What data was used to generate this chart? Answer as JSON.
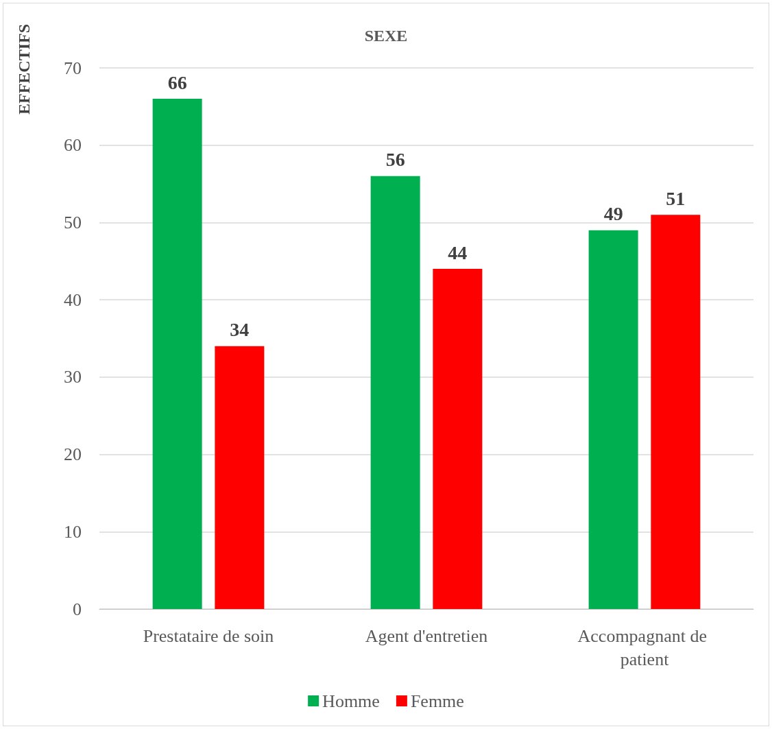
{
  "chart_data": {
    "type": "bar",
    "title": "SEXE",
    "ylabel": "EFFECTIFS",
    "categories": [
      "Prestataire de soin",
      "Agent d'entretien",
      "Accompagnant de patient"
    ],
    "series": [
      {
        "name": "Homme",
        "color": "#00b050",
        "values": [
          66,
          56,
          49
        ]
      },
      {
        "name": "Femme",
        "color": "#ff0000",
        "values": [
          34,
          44,
          51
        ]
      }
    ],
    "ylim": [
      0,
      70
    ],
    "yticks": [
      0,
      10,
      20,
      30,
      40,
      50,
      60,
      70
    ],
    "grid": "y",
    "legend": "bottom",
    "data_labels": true
  }
}
